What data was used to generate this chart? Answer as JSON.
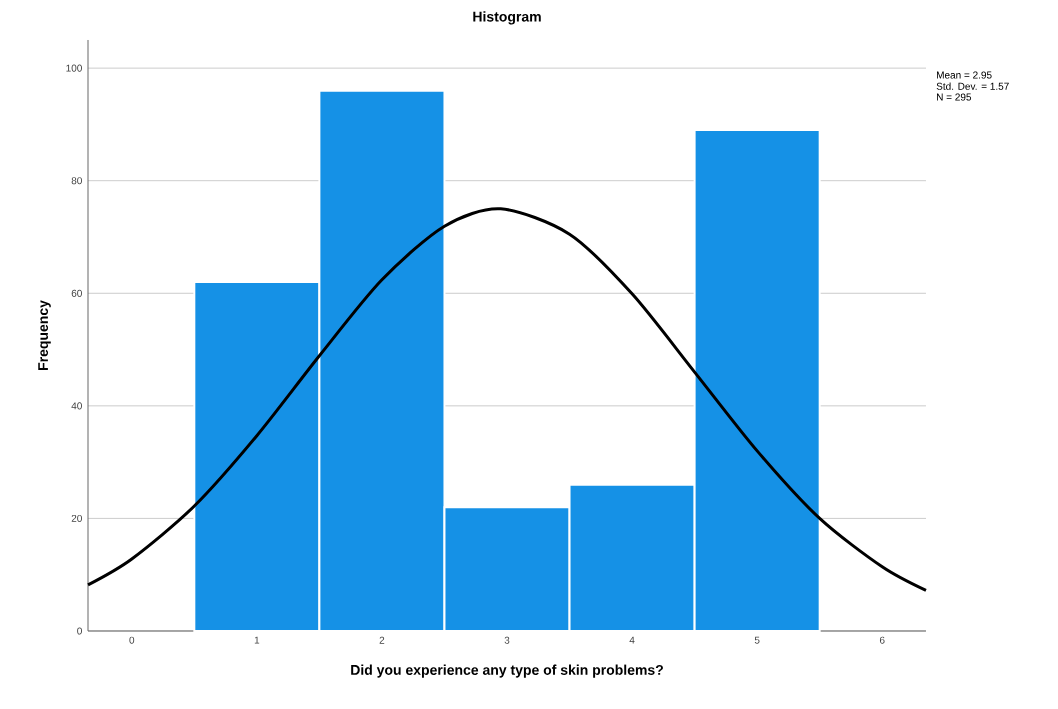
{
  "chart_data": {
    "type": "histogram",
    "title": "Histogram",
    "xlabel": "Did you experience any type of skin problems?",
    "ylabel": "Frequency",
    "bins": [
      0.5,
      1.5,
      2.5,
      3.5,
      4.5,
      5.5
    ],
    "values": [
      62,
      96,
      22,
      26,
      89
    ],
    "color": "#1591e6",
    "series": [
      {
        "type": "line",
        "color": "#000000",
        "x": [
          -0.35,
          0,
          0.5,
          1,
          1.5,
          2,
          2.5,
          2.95,
          3.5,
          4,
          4.5,
          5,
          5.5,
          6,
          6.35
        ],
        "values": [
          8.2,
          12.8,
          22.2,
          34.7,
          48.9,
          62.4,
          71.9,
          75.0,
          70.5,
          59.9,
          46.0,
          32.0,
          20.0,
          11.4,
          7.2
        ]
      }
    ],
    "xlim": [
      -0.35,
      6.35
    ],
    "ylim": [
      0,
      105
    ],
    "xticks": [
      0,
      1,
      2,
      3,
      4,
      5,
      6
    ],
    "yticks": [
      0,
      20,
      40,
      60,
      80,
      100
    ],
    "grid": "y",
    "marker": "none",
    "line_style": "solid",
    "annotations": [
      "Mean = 2.95",
      "Std. Dev. = 1.57",
      "N = 295"
    ]
  }
}
